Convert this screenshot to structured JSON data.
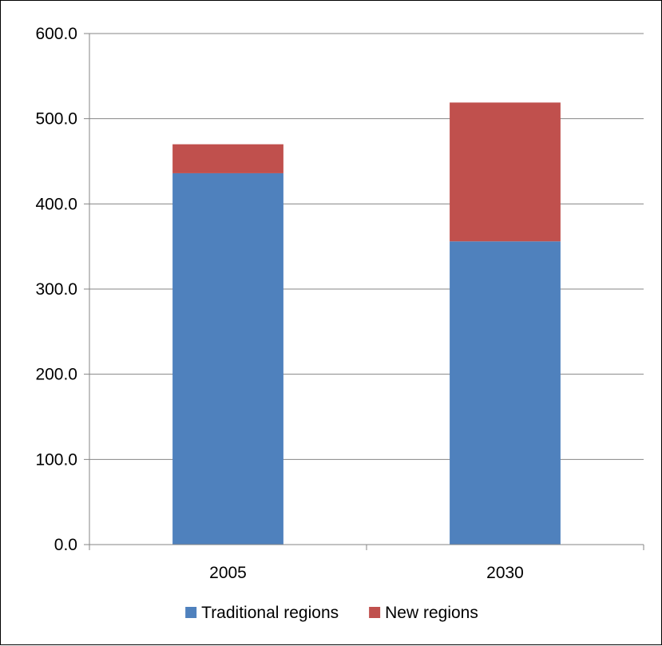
{
  "chart_data": {
    "type": "bar",
    "stacked": true,
    "categories": [
      "2005",
      "2030"
    ],
    "series": [
      {
        "name": "Traditional regions",
        "color": "#4F81BD",
        "values": [
          436.0,
          356.0
        ]
      },
      {
        "name": "New regions",
        "color": "#C0504D",
        "values": [
          34.0,
          163.0
        ]
      }
    ],
    "ylim": [
      0,
      600
    ],
    "yticks": [
      0,
      100,
      200,
      300,
      400,
      500,
      600
    ],
    "ytick_labels": [
      "0.0",
      "100.0",
      "200.0",
      "300.0",
      "400.0",
      "500.0",
      "600.0"
    ],
    "grid": true,
    "legend": "bottom",
    "title": "",
    "xlabel": "",
    "ylabel": ""
  }
}
